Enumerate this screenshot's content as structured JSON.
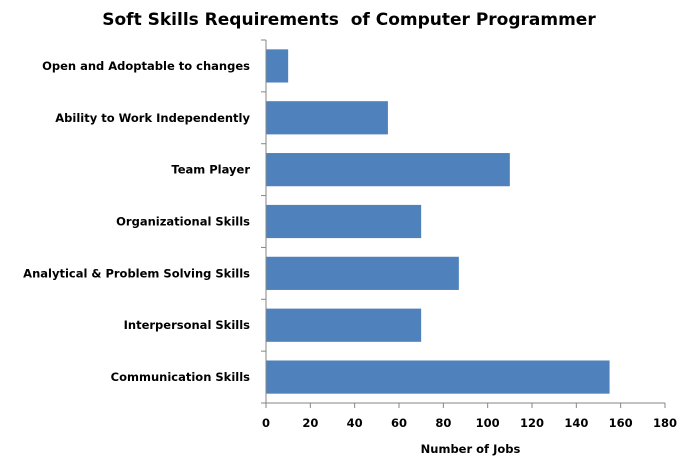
{
  "chart_data": {
    "type": "bar",
    "orientation": "horizontal",
    "title": "Soft Skills Requirements  of Computer Programmer",
    "xlabel": "Number of Jobs",
    "ylabel": "",
    "categories": [
      "Open and Adoptable to changes",
      "Ability to Work Independently",
      "Team Player",
      "Organizational Skills",
      "Analytical & Problem Solving Skills",
      "Interpersonal Skills",
      "Communication Skills"
    ],
    "values": [
      10,
      55,
      110,
      70,
      87,
      70,
      155
    ],
    "xlim": [
      0,
      180
    ],
    "xticks": [
      "0",
      "20",
      "40",
      "60",
      "80",
      "100",
      "120",
      "140",
      "160",
      "180"
    ],
    "grid": false,
    "legend": "none",
    "bar_color": "#4F81BD",
    "axis_color": "#868686"
  }
}
